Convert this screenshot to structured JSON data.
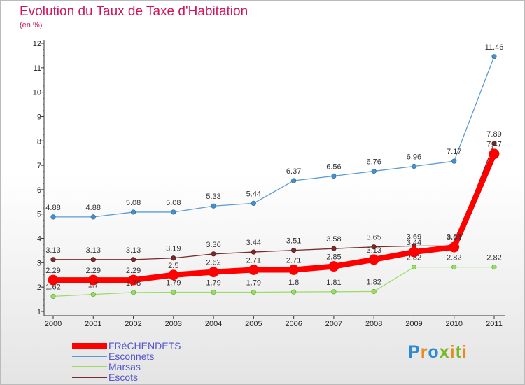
{
  "title": "Evolution du Taux de Taxe d'Habitation",
  "subtitle": "(en %)",
  "logo": {
    "text": "Proxiti",
    "colors": [
      "#2a8bd2",
      "#e88a1a",
      "#2a8bd2",
      "#7ab829",
      "#e88a1a",
      "#7ab829",
      "#e88a1a"
    ]
  },
  "chart_data": {
    "type": "line",
    "x": [
      "2000",
      "2001",
      "2002",
      "2003",
      "2004",
      "2005",
      "2006",
      "2007",
      "2008",
      "2009",
      "2010",
      "2011"
    ],
    "ylim": [
      1,
      12
    ],
    "yticks": [
      1,
      2,
      3,
      4,
      5,
      6,
      7,
      8,
      9,
      10,
      11,
      12
    ],
    "grid": false,
    "legend_position": "bottom-left",
    "series": [
      {
        "name": "FRéCHENDETS",
        "color": "#ff0000",
        "values": [
          2.29,
          2.29,
          2.29,
          2.5,
          2.62,
          2.71,
          2.71,
          2.85,
          3.13,
          3.44,
          3.64,
          7.47
        ],
        "labels": [
          "2.29",
          "2.29",
          "2.29",
          "2.5",
          "2.62",
          "2.71",
          "2.71",
          "2.85",
          "3.13",
          "3.44",
          "3.64",
          "7.47"
        ]
      },
      {
        "name": "Esconnets",
        "color": "#5b9bd5",
        "values": [
          4.88,
          4.88,
          5.08,
          5.08,
          5.33,
          5.44,
          6.37,
          6.56,
          6.76,
          6.96,
          7.17,
          11.46
        ],
        "labels": [
          "4.88",
          "4.88",
          "5.08",
          "5.08",
          "5.33",
          "5.44",
          "6.37",
          "6.56",
          "6.76",
          "6.96",
          "7.17",
          "11.46"
        ]
      },
      {
        "name": "Marsas",
        "color": "#99dd66",
        "values": [
          1.62,
          1.7,
          1.78,
          1.79,
          1.79,
          1.79,
          1.8,
          1.81,
          1.82,
          2.82,
          2.82,
          2.82
        ],
        "labels": [
          "1.62",
          "1.7",
          "1.78",
          "1.79",
          "1.79",
          "1.79",
          "1.8",
          "1.81",
          "1.82",
          "2.82",
          "2.82",
          "2.82"
        ]
      },
      {
        "name": "Escots",
        "color": "#7a2a2a",
        "values": [
          3.13,
          3.13,
          3.13,
          3.19,
          3.36,
          3.44,
          3.51,
          3.58,
          3.65,
          3.69,
          3.69,
          7.89
        ],
        "labels": [
          "3.13",
          "3.13",
          "3.13",
          "3.19",
          "3.36",
          "3.44",
          "3.51",
          "3.58",
          "3.65",
          "3.69",
          "3.69",
          "7.89"
        ]
      }
    ]
  }
}
